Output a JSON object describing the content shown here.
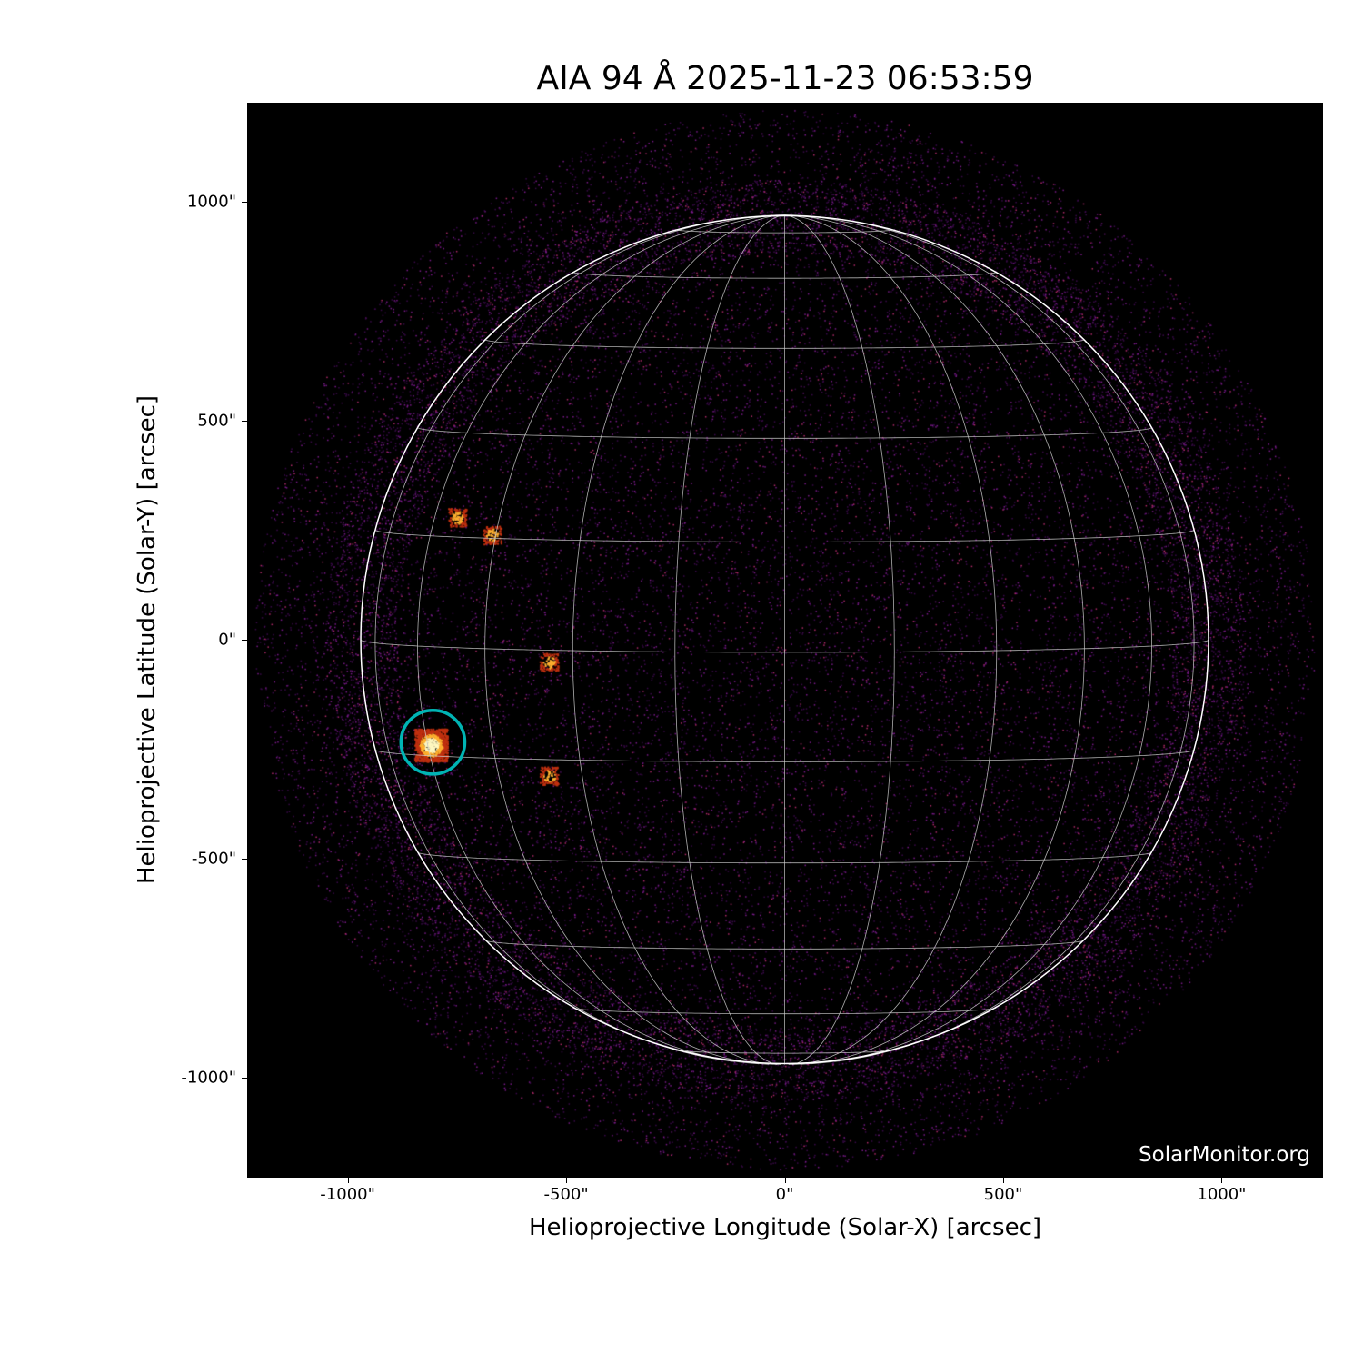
{
  "chart_data": {
    "type": "heatmap",
    "title": "AIA 94 Å 2025-11-23 06:53:59",
    "xlabel": "Helioprojective Longitude (Solar-X) [arcsec]",
    "ylabel": "Helioprojective Latitude (Solar-Y) [arcsec]",
    "xlim": [
      -1230,
      1232
    ],
    "ylim": [
      -1228,
      1226
    ],
    "xticks": [
      {
        "value": -1000,
        "label": "-1000\""
      },
      {
        "value": -500,
        "label": "-500\""
      },
      {
        "value": 0,
        "label": "0\""
      },
      {
        "value": 500,
        "label": "500\""
      },
      {
        "value": 1000,
        "label": "1000\""
      }
    ],
    "yticks": [
      {
        "value": 1000,
        "label": "1000\""
      },
      {
        "value": 500,
        "label": "500\""
      },
      {
        "value": 0,
        "label": "0\""
      },
      {
        "value": -500,
        "label": "-500\""
      },
      {
        "value": -1000,
        "label": "-1000\""
      }
    ],
    "solar_radius_arcsec": 970,
    "grid": {
      "type": "heliographic",
      "spacing_deg": 15,
      "color": "#cccccc"
    },
    "limb_color": "#ffffff",
    "colormap": "sdoaia94",
    "annotations": [
      {
        "type": "circle",
        "x": -805,
        "y": -234,
        "radius": 73,
        "color": "#00b4b4"
      }
    ],
    "bright_regions": [
      {
        "x": -810,
        "y": -240
      },
      {
        "x": -750,
        "y": 280
      },
      {
        "x": -670,
        "y": 240
      },
      {
        "x": -540,
        "y": -50
      },
      {
        "x": -540,
        "y": -310
      }
    ]
  },
  "watermark": "SolarMonitor.org"
}
